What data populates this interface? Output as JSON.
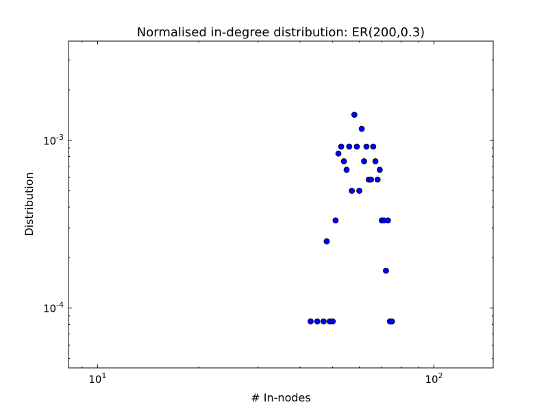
{
  "chart_data": {
    "type": "scatter",
    "title": "Normalised in-degree distribution: ER(200,0.3)",
    "xlabel": "# In-nodes",
    "ylabel": "Distribution",
    "xscale": "log",
    "yscale": "log",
    "xlim": [
      8.2,
      150
    ],
    "ylim": [
      4.4e-05,
      0.0039
    ],
    "x_major_ticks": [
      {
        "value": 10,
        "base": "10",
        "exp": "1"
      },
      {
        "value": 100,
        "base": "10",
        "exp": "2"
      }
    ],
    "y_major_ticks": [
      {
        "value": 0.0001,
        "base": "10",
        "exp": "-4"
      },
      {
        "value": 0.001,
        "base": "10",
        "exp": "-3"
      }
    ],
    "grid": false,
    "marker_color": "#0000ff",
    "marker_edge_color": "#000000",
    "points": [
      {
        "x": 43,
        "y": 8.33e-05
      },
      {
        "x": 45,
        "y": 8.33e-05
      },
      {
        "x": 47,
        "y": 8.33e-05
      },
      {
        "x": 48,
        "y": 0.00025
      },
      {
        "x": 49,
        "y": 8.33e-05
      },
      {
        "x": 50,
        "y": 8.33e-05
      },
      {
        "x": 51,
        "y": 0.000333
      },
      {
        "x": 52,
        "y": 0.000833
      },
      {
        "x": 53,
        "y": 0.000917
      },
      {
        "x": 54,
        "y": 0.00075
      },
      {
        "x": 55,
        "y": 0.000667
      },
      {
        "x": 56,
        "y": 0.000917
      },
      {
        "x": 57,
        "y": 0.0005
      },
      {
        "x": 58,
        "y": 0.00142
      },
      {
        "x": 59,
        "y": 0.000917
      },
      {
        "x": 60,
        "y": 0.0005
      },
      {
        "x": 61,
        "y": 0.00117
      },
      {
        "x": 62,
        "y": 0.00075
      },
      {
        "x": 63,
        "y": 0.000917
      },
      {
        "x": 64,
        "y": 0.000583
      },
      {
        "x": 65,
        "y": 0.000583
      },
      {
        "x": 66,
        "y": 0.000917
      },
      {
        "x": 67,
        "y": 0.00075
      },
      {
        "x": 68,
        "y": 0.000583
      },
      {
        "x": 69,
        "y": 0.000667
      },
      {
        "x": 70,
        "y": 0.000333
      },
      {
        "x": 71,
        "y": 0.000333
      },
      {
        "x": 72,
        "y": 0.000167
      },
      {
        "x": 73,
        "y": 0.000333
      },
      {
        "x": 74,
        "y": 8.33e-05
      },
      {
        "x": 75,
        "y": 8.33e-05
      }
    ]
  }
}
